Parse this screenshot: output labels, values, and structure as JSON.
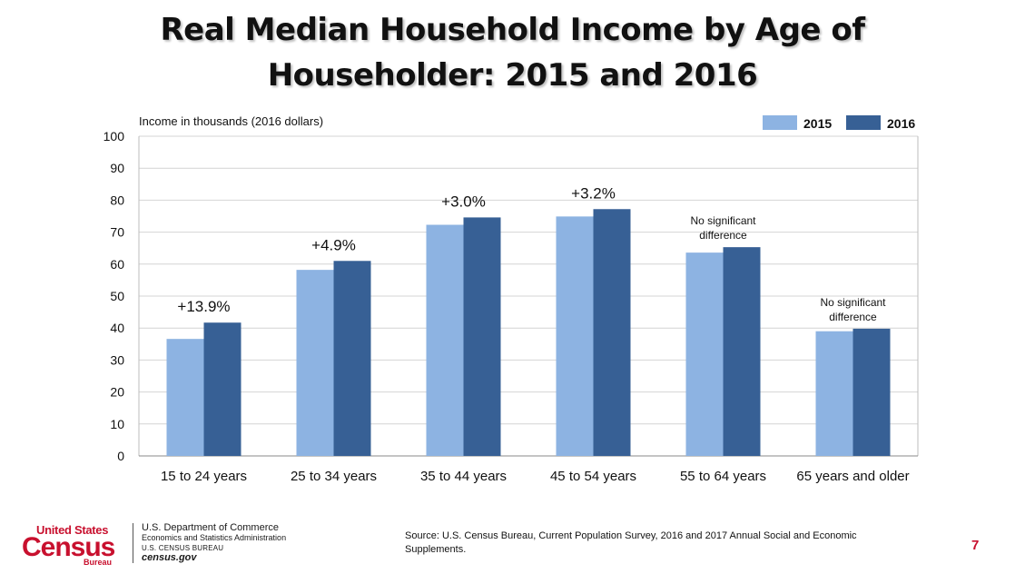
{
  "title_line1": "Real Median Household Income by Age of",
  "title_line2": "Householder: 2015 and 2016",
  "chart_data": {
    "type": "bar",
    "title": "Real Median Household Income by Age of Householder: 2015 and 2016",
    "ylabel": "Income in thousands (2016 dollars)",
    "xlabel": "",
    "ylim": [
      0,
      100
    ],
    "yticks": [
      0,
      10,
      20,
      30,
      40,
      50,
      60,
      70,
      80,
      90,
      100
    ],
    "grid": true,
    "legend_position": "top-right",
    "categories": [
      "15 to 24 years",
      "25 to 34 years",
      "35 to 44 years",
      "45 to 54 years",
      "55 to 64 years",
      "65 years and older"
    ],
    "series": [
      {
        "name": "2015",
        "color": "#8db3e2",
        "values": [
          36.6,
          58.2,
          72.3,
          74.9,
          63.6,
          39.0
        ]
      },
      {
        "name": "2016",
        "color": "#376095",
        "values": [
          41.7,
          61.0,
          74.6,
          77.2,
          65.3,
          39.8
        ]
      }
    ],
    "annotations": [
      {
        "text": "+13.9%",
        "style": "large"
      },
      {
        "text": "+4.9%",
        "style": "large"
      },
      {
        "text": "+3.0%",
        "style": "large"
      },
      {
        "text": "+3.2%",
        "style": "large"
      },
      {
        "text": "No significant difference",
        "style": "small"
      },
      {
        "text": "No significant difference",
        "style": "small"
      }
    ]
  },
  "footer": {
    "logo_united_states": "United States",
    "logo_census": "Census",
    "logo_bureau": "Bureau",
    "dept_line1": "U.S. Department of Commerce",
    "dept_line2": "Economics and Statistics Administration",
    "dept_line3": "U.S. CENSUS BUREAU",
    "dept_line4": "census.gov",
    "source": "Source: U.S. Census Bureau, Current Population Survey, 2016 and 2017 Annual Social and Economic Supplements.",
    "page_number": "7"
  }
}
